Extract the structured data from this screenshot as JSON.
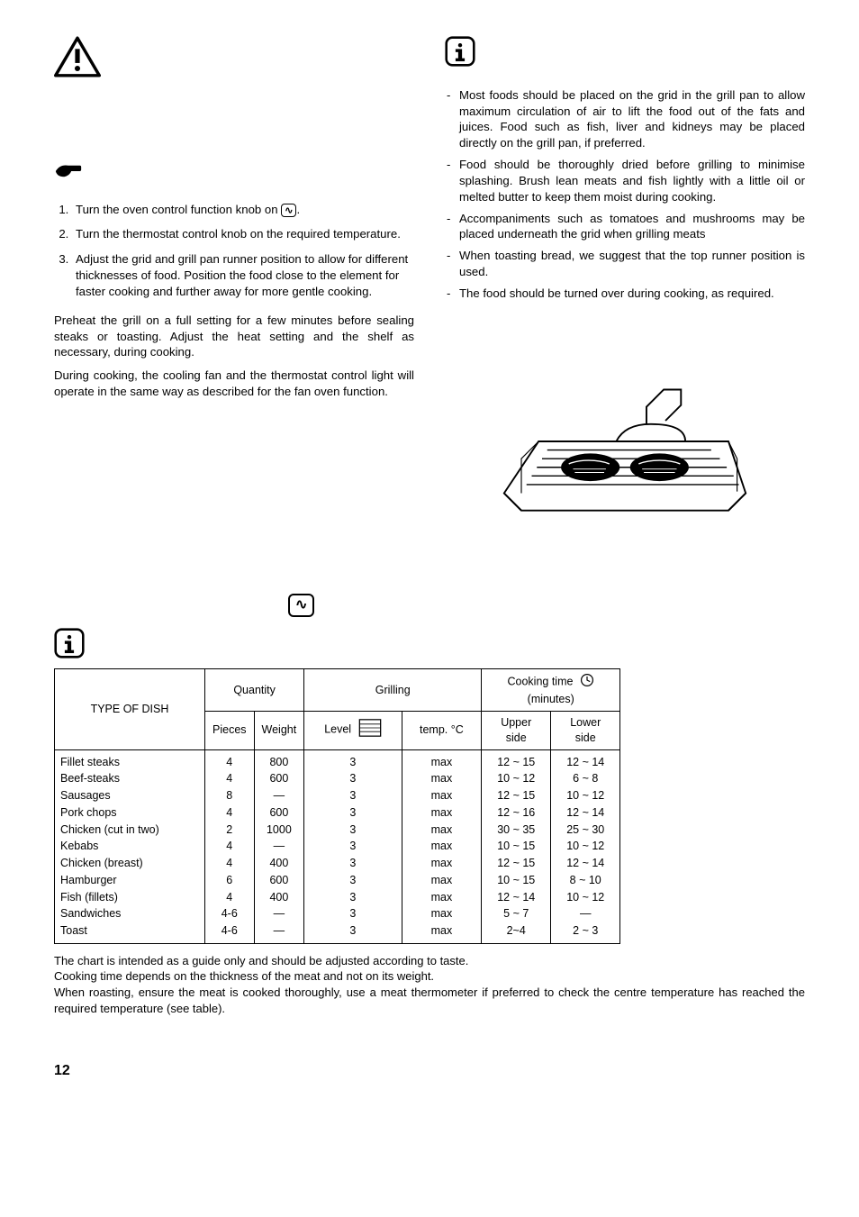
{
  "left_column": {
    "warning_space": true,
    "steps": [
      {
        "label_prefix": "Turn the oven control function knob on ",
        "label_suffix": "."
      },
      {
        "text": "Turn the thermostat control knob on the required temperature."
      },
      {
        "text": "Adjust the grid and grill pan runner position to allow for different thicknesses of food. Position the food close to the element for faster cooking and further away for more gentle cooking."
      }
    ],
    "para1": "Preheat the grill on a full setting  for a  few minutes before sealing steaks or toasting. Adjust the heat setting and the shelf as necessary, during cooking.",
    "para2": "During cooking, the cooling fan and the thermostat control light will operate in the same way as described for the fan oven function."
  },
  "right_column": {
    "tips": [
      "Most foods should be placed on the grid in the grill pan to allow maximum circulation of air to lift the food out of the fats and juices. Food such as fish, liver and kidneys may be placed directly on the grill pan, if preferred.",
      "Food should be thoroughly dried before grilling to minimise splashing. Brush lean meats and fish lightly with a little oil or melted butter to keep them moist during cooking.",
      "Accompaniments such as tomatoes and mushrooms may be placed underneath the grid when grilling meats",
      "When toasting bread, we suggest that the top runner position is used.",
      "The food should be turned over during cooking, as required."
    ]
  },
  "table": {
    "header": {
      "type": "TYPE OF DISH",
      "quantity": "Quantity",
      "grilling": "Grilling",
      "cooktime": "Cooking time",
      "cooktime_sub": "(minutes)",
      "pieces": "Pieces",
      "weight": "Weight",
      "level": "Level",
      "temp": "temp. °C",
      "upper": "Upper side",
      "lower": "Lower side"
    },
    "rows": [
      {
        "dish": "Fillet steaks",
        "pieces": "4",
        "weight": "800",
        "level": "3",
        "temp": "max",
        "upper": "12 ~ 15",
        "lower": "12 ~ 14"
      },
      {
        "dish": "Beef-steaks",
        "pieces": "4",
        "weight": "600",
        "level": "3",
        "temp": "max",
        "upper": "10 ~ 12",
        "lower": "6 ~ 8"
      },
      {
        "dish": "Sausages",
        "pieces": "8",
        "weight": "—",
        "level": "3",
        "temp": "max",
        "upper": "12 ~ 15",
        "lower": "10 ~ 12"
      },
      {
        "dish": "Pork chops",
        "pieces": "4",
        "weight": "600",
        "level": "3",
        "temp": "max",
        "upper": "12 ~ 16",
        "lower": "12 ~ 14"
      },
      {
        "dish": "Chicken (cut in two)",
        "pieces": "2",
        "weight": "1000",
        "level": "3",
        "temp": "max",
        "upper": "30 ~ 35",
        "lower": "25 ~ 30"
      },
      {
        "dish": "Kebabs",
        "pieces": "4",
        "weight": "—",
        "level": "3",
        "temp": "max",
        "upper": "10 ~ 15",
        "lower": "10 ~ 12"
      },
      {
        "dish": "Chicken (breast)",
        "pieces": "4",
        "weight": "400",
        "level": "3",
        "temp": "max",
        "upper": "12 ~ 15",
        "lower": "12 ~ 14"
      },
      {
        "dish": "Hamburger",
        "pieces": "6",
        "weight": "600",
        "level": "3",
        "temp": "max",
        "upper": "10 ~ 15",
        "lower": "8 ~ 10"
      },
      {
        "dish": "Fish (fillets)",
        "pieces": "4",
        "weight": "400",
        "level": "3",
        "temp": "max",
        "upper": "12 ~ 14",
        "lower": "10 ~ 12"
      },
      {
        "dish": "Sandwiches",
        "pieces": "4-6",
        "weight": "—",
        "level": "3",
        "temp": "max",
        "upper": "5 ~ 7",
        "lower": "—"
      },
      {
        "dish": "Toast",
        "pieces": "4-6",
        "weight": "—",
        "level": "3",
        "temp": "max",
        "upper": "2~4",
        "lower": "2 ~ 3"
      }
    ]
  },
  "notes": {
    "n1": "The chart is intended as a guide only and should be adjusted according to taste.",
    "n2": "Cooking time depends on the thickness of the meat and not on its weight.",
    "n3": "When roasting, ensure the meat is cooked thoroughly, use a meat thermometer if preferred to check the centre temperature has reached the required temperature (see table)."
  },
  "page_number": "12"
}
